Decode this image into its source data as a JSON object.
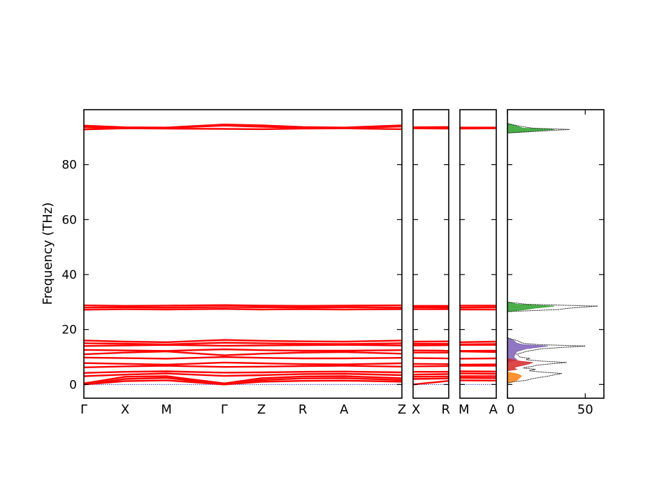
{
  "chart_data": {
    "type": "line",
    "title": "",
    "ylabel": "Frequency (THz)",
    "ylim": [
      -5,
      100
    ],
    "y_ticks": [
      0,
      20,
      40,
      60,
      80
    ],
    "grid": false,
    "colors": {
      "band": "#ff0000",
      "axis": "#000000",
      "dos_total": "#000000",
      "dos_high": "#2ca02c",
      "dos_mid": "#7b5fb8",
      "dos_low": "#ff7f0e",
      "dos_red": "#d62728"
    },
    "band_panels": [
      {
        "labels": [
          "Γ",
          "X",
          "M",
          "Γ",
          "Z",
          "R",
          "A",
          "Z"
        ],
        "positions": [
          0,
          1,
          2,
          3.4,
          4.3,
          5.3,
          6.3,
          7.7
        ],
        "bands": [
          {
            "name": "b1",
            "values": [
              0.0,
              1.2,
              1.5,
              0.0,
              1.0,
              1.3,
              1.4,
              1.0
            ]
          },
          {
            "name": "b2",
            "values": [
              0.0,
              2.0,
              2.4,
              0.0,
              1.6,
              2.2,
              2.3,
              1.6
            ]
          },
          {
            "name": "b3",
            "values": [
              0.4,
              2.8,
              3.0,
              0.4,
              2.3,
              2.9,
              3.0,
              2.3
            ]
          },
          {
            "name": "b4",
            "values": [
              3.0,
              3.6,
              4.0,
              3.1,
              3.4,
              3.8,
              3.9,
              3.4
            ]
          },
          {
            "name": "b5",
            "values": [
              4.2,
              4.6,
              4.8,
              4.3,
              4.4,
              4.6,
              4.7,
              4.4
            ]
          },
          {
            "name": "b6",
            "values": [
              6.2,
              6.6,
              6.8,
              6.4,
              6.5,
              6.7,
              6.8,
              6.5
            ]
          },
          {
            "name": "b7",
            "values": [
              7.8,
              7.5,
              7.2,
              8.0,
              7.7,
              7.4,
              7.3,
              7.7
            ]
          },
          {
            "name": "b8",
            "values": [
              9.8,
              9.6,
              9.4,
              10.0,
              9.7,
              9.5,
              9.5,
              9.7
            ]
          },
          {
            "name": "b9",
            "values": [
              11.0,
              11.6,
              12.0,
              10.6,
              11.2,
              11.6,
              11.8,
              11.2
            ]
          },
          {
            "name": "b10",
            "values": [
              12.6,
              12.4,
              12.2,
              12.8,
              12.5,
              12.3,
              12.3,
              12.5
            ]
          },
          {
            "name": "b11",
            "values": [
              14.0,
              14.2,
              14.4,
              14.1,
              14.2,
              14.3,
              14.4,
              14.2
            ]
          },
          {
            "name": "b12",
            "values": [
              15.0,
              14.8,
              14.6,
              15.2,
              15.0,
              14.8,
              14.7,
              15.0
            ]
          },
          {
            "name": "b13",
            "values": [
              16.0,
              15.6,
              15.4,
              16.2,
              15.9,
              15.7,
              15.6,
              16.0
            ]
          },
          {
            "name": "b14",
            "values": [
              27.2,
              27.4,
              27.3,
              27.5,
              27.3,
              27.4,
              27.3,
              27.4
            ]
          },
          {
            "name": "b15",
            "values": [
              28.0,
              28.1,
              28.0,
              28.2,
              28.1,
              28.0,
              28.1,
              28.0
            ]
          },
          {
            "name": "b16",
            "values": [
              28.8,
              28.6,
              28.7,
              28.9,
              28.7,
              28.6,
              28.7,
              28.8
            ]
          },
          {
            "name": "b17",
            "values": [
              92.8,
              93.2,
              93.1,
              93.0,
              92.9,
              93.1,
              93.2,
              92.9
            ]
          },
          {
            "name": "b18",
            "values": [
              93.6,
              93.3,
              93.4,
              94.2,
              93.8,
              93.4,
              93.3,
              93.9
            ]
          },
          {
            "name": "b19",
            "values": [
              94.2,
              93.6,
              93.5,
              94.6,
              94.3,
              93.7,
              93.5,
              94.3
            ]
          }
        ]
      },
      {
        "labels": [
          "X",
          "R"
        ],
        "positions": [
          0,
          1
        ],
        "bands": [
          {
            "name": "b1",
            "values": [
              0.0,
              1.3
            ]
          },
          {
            "name": "b2",
            "values": [
              2.0,
              2.2
            ]
          },
          {
            "name": "b3",
            "values": [
              2.8,
              2.9
            ]
          },
          {
            "name": "b4",
            "values": [
              3.6,
              3.8
            ]
          },
          {
            "name": "b5",
            "values": [
              4.6,
              4.6
            ]
          },
          {
            "name": "b6",
            "values": [
              6.6,
              6.7
            ]
          },
          {
            "name": "b7",
            "values": [
              7.5,
              7.4
            ]
          },
          {
            "name": "b8",
            "values": [
              9.6,
              9.5
            ]
          },
          {
            "name": "b9",
            "values": [
              11.6,
              11.6
            ]
          },
          {
            "name": "b10",
            "values": [
              12.4,
              12.3
            ]
          },
          {
            "name": "b11",
            "values": [
              14.2,
              14.3
            ]
          },
          {
            "name": "b12",
            "values": [
              14.8,
              14.8
            ]
          },
          {
            "name": "b13",
            "values": [
              15.6,
              15.7
            ]
          },
          {
            "name": "b14",
            "values": [
              27.4,
              27.4
            ]
          },
          {
            "name": "b15",
            "values": [
              28.1,
              28.0
            ]
          },
          {
            "name": "b16",
            "values": [
              28.6,
              28.6
            ]
          },
          {
            "name": "b17",
            "values": [
              93.2,
              93.1
            ]
          },
          {
            "name": "b18",
            "values": [
              93.3,
              93.4
            ]
          },
          {
            "name": "b19",
            "values": [
              93.6,
              93.7
            ]
          }
        ]
      },
      {
        "labels": [
          "M",
          "A"
        ],
        "positions": [
          0,
          1
        ],
        "bands": [
          {
            "name": "b1",
            "values": [
              1.5,
              1.4
            ]
          },
          {
            "name": "b2",
            "values": [
              2.4,
              2.3
            ]
          },
          {
            "name": "b3",
            "values": [
              3.0,
              3.0
            ]
          },
          {
            "name": "b4",
            "values": [
              4.0,
              3.9
            ]
          },
          {
            "name": "b5",
            "values": [
              4.8,
              4.7
            ]
          },
          {
            "name": "b6",
            "values": [
              6.8,
              6.8
            ]
          },
          {
            "name": "b7",
            "values": [
              7.2,
              7.3
            ]
          },
          {
            "name": "b8",
            "values": [
              9.4,
              9.5
            ]
          },
          {
            "name": "b9",
            "values": [
              12.0,
              11.8
            ]
          },
          {
            "name": "b10",
            "values": [
              12.2,
              12.3
            ]
          },
          {
            "name": "b11",
            "values": [
              14.4,
              14.4
            ]
          },
          {
            "name": "b12",
            "values": [
              14.6,
              14.7
            ]
          },
          {
            "name": "b13",
            "values": [
              15.4,
              15.6
            ]
          },
          {
            "name": "b14",
            "values": [
              27.3,
              27.3
            ]
          },
          {
            "name": "b15",
            "values": [
              28.0,
              28.1
            ]
          },
          {
            "name": "b16",
            "values": [
              28.7,
              28.7
            ]
          },
          {
            "name": "b17",
            "values": [
              93.1,
              93.2
            ]
          },
          {
            "name": "b18",
            "values": [
              93.4,
              93.3
            ]
          },
          {
            "name": "b19",
            "values": [
              93.5,
              93.5
            ]
          }
        ]
      }
    ],
    "dos": {
      "xlim": [
        0,
        62
      ],
      "x_ticks": [
        0,
        50
      ],
      "total": [
        [
          0,
          0.5
        ],
        [
          4,
          1.0
        ],
        [
          12,
          1.5
        ],
        [
          15,
          2.0
        ],
        [
          20,
          2.5
        ],
        [
          26,
          3.0
        ],
        [
          30,
          3.5
        ],
        [
          35,
          4.0
        ],
        [
          22,
          4.5
        ],
        [
          14,
          5.0
        ],
        [
          18,
          5.5
        ],
        [
          10,
          6.0
        ],
        [
          15,
          6.5
        ],
        [
          19,
          7.0
        ],
        [
          28,
          7.5
        ],
        [
          38,
          8.0
        ],
        [
          22,
          8.5
        ],
        [
          12,
          9.0
        ],
        [
          14,
          9.5
        ],
        [
          8,
          10.0
        ],
        [
          6,
          11.0
        ],
        [
          12,
          12.0
        ],
        [
          22,
          13.0
        ],
        [
          50,
          14.0
        ],
        [
          20,
          14.5
        ],
        [
          10,
          15.0
        ],
        [
          6,
          16.0
        ],
        [
          0,
          17.0
        ],
        [
          0,
          26.5
        ],
        [
          33,
          27.3
        ],
        [
          40,
          27.8
        ],
        [
          58,
          28.5
        ],
        [
          12,
          29.2
        ],
        [
          0,
          30.0
        ],
        [
          0,
          91.5
        ],
        [
          40,
          92.8
        ],
        [
          16,
          93.3
        ],
        [
          8,
          94.0
        ],
        [
          0,
          95.0
        ]
      ],
      "partial": [
        {
          "name": "high",
          "color": "#2ca02c",
          "points": [
            [
              0,
              26.5
            ],
            [
              12,
              27.3
            ],
            [
              18,
              27.8
            ],
            [
              30,
              28.5
            ],
            [
              6,
              29.2
            ],
            [
              0,
              30.0
            ],
            [
              0,
              91.5
            ],
            [
              30,
              92.8
            ],
            [
              10,
              93.3
            ],
            [
              6,
              94.0
            ],
            [
              0,
              95.0
            ]
          ]
        },
        {
          "name": "mid",
          "color": "#7b5fb8",
          "points": [
            [
              0,
              8.0
            ],
            [
              6,
              9.0
            ],
            [
              4,
              10.0
            ],
            [
              6,
              12.0
            ],
            [
              12,
              13.0
            ],
            [
              26,
              14.0
            ],
            [
              10,
              14.5
            ],
            [
              6,
              15.0
            ],
            [
              4,
              16.0
            ],
            [
              0,
              17.0
            ]
          ]
        },
        {
          "name": "low",
          "color": "#ff7f0e",
          "points": [
            [
              0,
              0.5
            ],
            [
              3,
              1.0
            ],
            [
              6,
              1.5
            ],
            [
              7,
              2.0
            ],
            [
              8,
              2.5
            ],
            [
              9,
              3.0
            ],
            [
              8,
              3.5
            ],
            [
              5,
              4.0
            ],
            [
              0,
              4.5
            ]
          ]
        },
        {
          "name": "red",
          "color": "#d62728",
          "points": [
            [
              0,
              5.0
            ],
            [
              6,
              5.5
            ],
            [
              4,
              6.0
            ],
            [
              6,
              6.5
            ],
            [
              10,
              7.0
            ],
            [
              14,
              7.5
            ],
            [
              16,
              8.0
            ],
            [
              8,
              8.5
            ],
            [
              4,
              9.0
            ],
            [
              0,
              9.5
            ]
          ]
        }
      ]
    }
  }
}
